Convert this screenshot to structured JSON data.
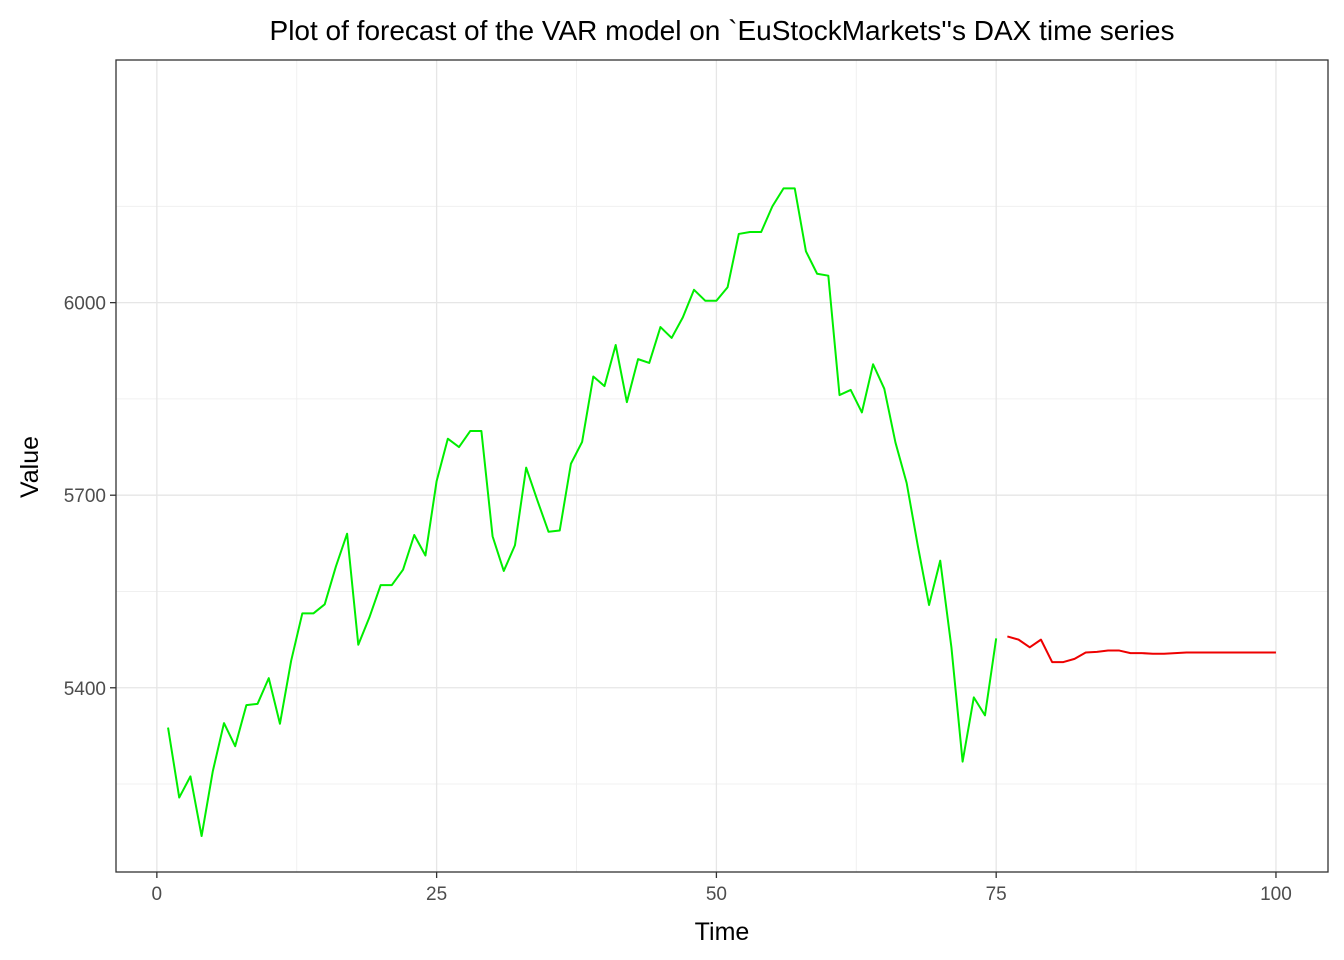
{
  "chart_data": {
    "type": "line",
    "title": "Plot of forecast of the VAR model on `EuStockMarkets''s DAX time series",
    "xlabel": "Time",
    "ylabel": "Value",
    "xlim": [
      -3.65,
      104.65
    ],
    "ylim": [
      5113,
      6378
    ],
    "x_ticks": [
      0,
      25,
      50,
      75,
      100
    ],
    "x_tick_labels": [
      "0",
      "25",
      "50",
      "75",
      "100"
    ],
    "y_ticks": [
      5400,
      5700,
      6000
    ],
    "y_tick_labels": [
      "5400",
      "5700",
      "6000"
    ],
    "grid": true,
    "legend": "none",
    "series": [
      {
        "color": "#00ee00",
        "x": [
          1,
          2,
          3,
          4,
          5,
          6,
          7,
          8,
          9,
          10,
          11,
          12,
          13,
          14,
          15,
          16,
          17,
          18,
          19,
          20,
          21,
          22,
          23,
          24,
          25,
          26,
          27,
          28,
          29,
          30,
          31,
          32,
          33,
          34,
          35,
          36,
          37,
          38,
          39,
          40,
          41,
          42,
          43,
          44,
          45,
          46,
          47,
          48,
          49,
          50,
          51,
          52,
          53,
          54,
          55,
          56,
          57,
          58,
          59,
          60,
          61,
          62,
          63,
          64,
          65,
          66,
          67,
          68,
          69,
          70,
          71,
          72,
          73,
          74,
          75
        ],
        "values": [
          5338,
          5229,
          5262,
          5169,
          5270,
          5345,
          5309,
          5373,
          5375,
          5415,
          5344,
          5442,
          5516,
          5516,
          5530,
          5589,
          5640,
          5467,
          5510,
          5560,
          5560,
          5584,
          5638,
          5606,
          5722,
          5788,
          5775,
          5800,
          5800,
          5636,
          5582,
          5622,
          5743,
          5692,
          5643,
          5645,
          5749,
          5783,
          5885,
          5870,
          5934,
          5845,
          5912,
          5906,
          5962,
          5945,
          5977,
          6020,
          6003,
          6003,
          6024,
          6107,
          6110,
          6110,
          6150,
          6178,
          6178,
          6080,
          6045,
          6042,
          5856,
          5864,
          5829,
          5904,
          5866,
          5782,
          5719,
          5621,
          5529,
          5598,
          5463,
          5285,
          5385,
          5357,
          5477
        ]
      },
      {
        "color": "#ee0000",
        "x": [
          76,
          77,
          78,
          79,
          80,
          81,
          82,
          83,
          84,
          85,
          86,
          87,
          88,
          89,
          90,
          91,
          92,
          93,
          94,
          95,
          96,
          97,
          98,
          99,
          100
        ],
        "values": [
          5480,
          5475,
          5463,
          5475,
          5440,
          5440,
          5445,
          5455,
          5456,
          5458,
          5458,
          5454,
          5454,
          5453,
          5453,
          5454,
          5455,
          5455,
          5455,
          5455,
          5455,
          5455,
          5455,
          5455,
          5455
        ]
      }
    ]
  }
}
